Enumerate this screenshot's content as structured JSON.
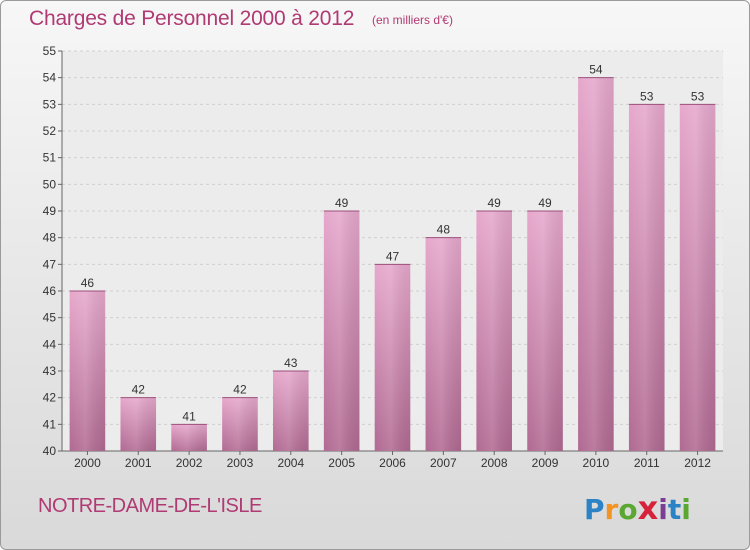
{
  "header": {
    "title": "Charges de Personnel 2000 à 2012",
    "unit_note": "(en milliers d'€)"
  },
  "footer": {
    "commune": "NOTRE-DAME-DE-L'ISLE",
    "logo_letters": [
      "P",
      "r",
      "o",
      "x",
      "i",
      "t",
      "i"
    ],
    "logo_colors": [
      "#2b83c6",
      "#f39321",
      "#5aa832",
      "#d6223b",
      "#7a3f95",
      "#2b83c6",
      "#5aa832"
    ]
  },
  "colors": {
    "bar_top": "#e6a8cc",
    "bar_bottom": "#b16a92",
    "title": "#b03a73"
  },
  "chart_data": {
    "type": "bar",
    "title": "Charges de Personnel 2000 à 2012",
    "subtitle": "(en milliers d'€)",
    "categories": [
      "2000",
      "2001",
      "2002",
      "2003",
      "2004",
      "2005",
      "2006",
      "2007",
      "2008",
      "2009",
      "2010",
      "2011",
      "2012"
    ],
    "values": [
      46,
      42,
      41,
      42,
      43,
      49,
      47,
      48,
      49,
      49,
      54,
      53,
      53
    ],
    "data_labels": [
      "46",
      "42",
      "41",
      "42",
      "43",
      "49",
      "47",
      "48",
      "49",
      "49",
      "54",
      "53",
      "53"
    ],
    "ylim": [
      40,
      55
    ],
    "yticks": [
      "40",
      "41",
      "42",
      "43",
      "44",
      "45",
      "46",
      "47",
      "48",
      "49",
      "50",
      "51",
      "52",
      "53",
      "54",
      "55"
    ],
    "grid": true
  }
}
